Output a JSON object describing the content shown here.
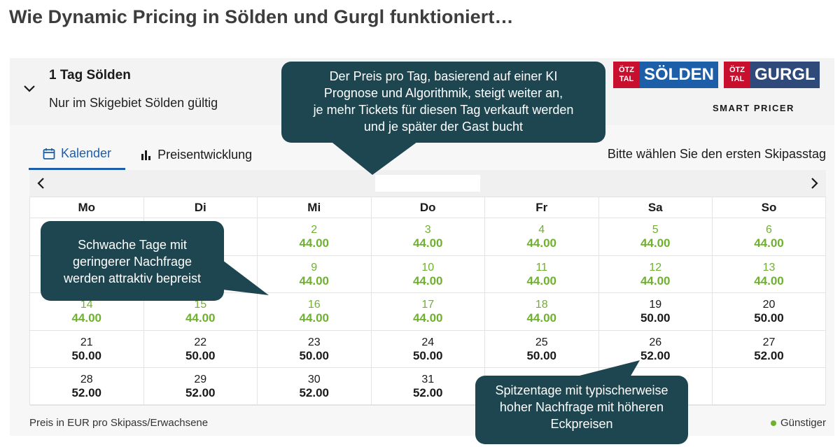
{
  "page_title": "Wie Dynamic Pricing in Sölden und Gurgl funktioniert…",
  "ticket": {
    "title": "1 Tag Sölden",
    "subtitle": "Nur im Skigebiet Sölden gültig"
  },
  "logos": {
    "oetztal_line1": "ÖTZ",
    "oetztal_line2": "TAL",
    "soelden": "SÖLDEN",
    "gurgl": "GURGL",
    "smart_pricer": "SMART PRICER"
  },
  "tabs": [
    {
      "label": "Kalender",
      "icon": "calendar-icon",
      "active": true
    },
    {
      "label": "Preisentwicklung",
      "icon": "bar-chart-icon",
      "active": false
    }
  ],
  "instruction": "Bitte wählen Sie den ersten Skipasstag",
  "weekdays": [
    "Mo",
    "Di",
    "Mi",
    "Do",
    "Fr",
    "Sa",
    "So"
  ],
  "weeks": [
    [
      null,
      null,
      {
        "day": "2",
        "price": "44.00",
        "type": "cheap"
      },
      {
        "day": "3",
        "price": "44.00",
        "type": "cheap"
      },
      {
        "day": "4",
        "price": "44.00",
        "type": "cheap"
      },
      {
        "day": "5",
        "price": "44.00",
        "type": "cheap"
      },
      {
        "day": "6",
        "price": "44.00",
        "type": "cheap"
      }
    ],
    [
      null,
      null,
      {
        "day": "9",
        "price": "44.00",
        "type": "cheap"
      },
      {
        "day": "10",
        "price": "44.00",
        "type": "cheap"
      },
      {
        "day": "11",
        "price": "44.00",
        "type": "cheap"
      },
      {
        "day": "12",
        "price": "44.00",
        "type": "cheap"
      },
      {
        "day": "13",
        "price": "44.00",
        "type": "cheap"
      }
    ],
    [
      {
        "day": "14",
        "price": "44.00",
        "type": "cheap"
      },
      {
        "day": "15",
        "price": "44.00",
        "type": "cheap"
      },
      {
        "day": "16",
        "price": "44.00",
        "type": "cheap"
      },
      {
        "day": "17",
        "price": "44.00",
        "type": "cheap"
      },
      {
        "day": "18",
        "price": "44.00",
        "type": "cheap"
      },
      {
        "day": "19",
        "price": "50.00",
        "type": "normal"
      },
      {
        "day": "20",
        "price": "50.00",
        "type": "normal"
      }
    ],
    [
      {
        "day": "21",
        "price": "50.00",
        "type": "normal"
      },
      {
        "day": "22",
        "price": "50.00",
        "type": "normal"
      },
      {
        "day": "23",
        "price": "50.00",
        "type": "normal"
      },
      {
        "day": "24",
        "price": "50.00",
        "type": "normal"
      },
      {
        "day": "25",
        "price": "50.00",
        "type": "normal"
      },
      {
        "day": "26",
        "price": "52.00",
        "type": "normal"
      },
      {
        "day": "27",
        "price": "52.00",
        "type": "normal"
      }
    ],
    [
      {
        "day": "28",
        "price": "52.00",
        "type": "normal"
      },
      {
        "day": "29",
        "price": "52.00",
        "type": "normal"
      },
      {
        "day": "30",
        "price": "52.00",
        "type": "normal"
      },
      {
        "day": "31",
        "price": "52.00",
        "type": "normal"
      },
      null,
      null,
      null
    ]
  ],
  "footer_note": "Preis in EUR pro Skipass/Erwachsene",
  "legend_label": "Günstiger",
  "callouts": {
    "top": [
      "Der Preis pro Tag, basierend auf einer KI",
      "Prognose und Algorithmik, steigt weiter an,",
      "je mehr Tickets für diesen Tag verkauft werden",
      "und je später der Gast bucht"
    ],
    "left": [
      "Schwache Tage mit",
      "geringerer Nachfrage",
      "werden attraktiv bepreist"
    ],
    "right": [
      "Spitzentage mit typischerweise",
      "hoher Nachfrage mit höheren",
      "Eckpreisen"
    ]
  },
  "colors": {
    "cheap": "#6fb12f",
    "accent": "#1d5ea8",
    "callout": "#1e4650",
    "oetztal_red": "#c8102e"
  }
}
